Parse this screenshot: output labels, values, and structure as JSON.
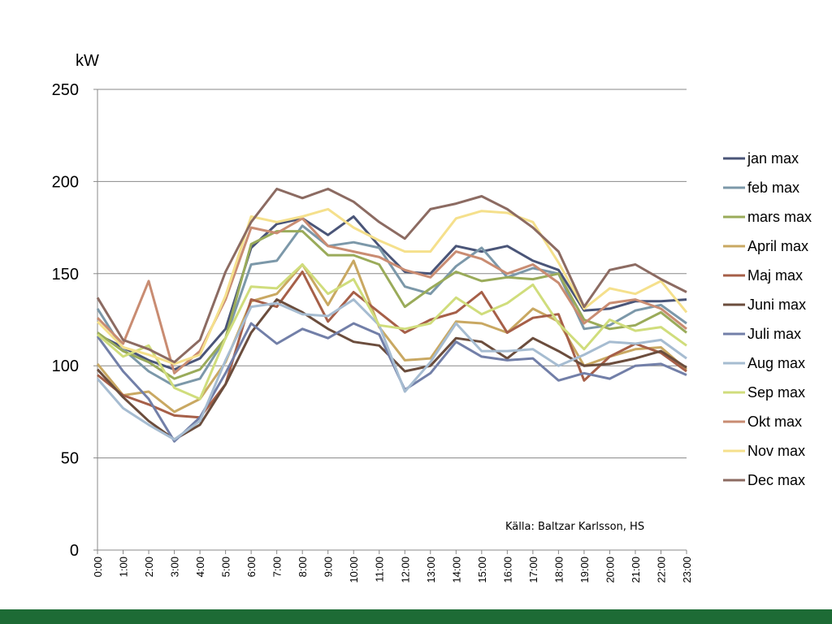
{
  "chart_data": {
    "type": "line",
    "ylabel": "kW",
    "ylim": [
      0,
      250
    ],
    "yticks": [
      0,
      50,
      100,
      150,
      200,
      250
    ],
    "grid": true,
    "legend_position": "right",
    "source": "Källa: Baltzar Karlsson, HS",
    "categories": [
      "0:00",
      "1:00",
      "2:00",
      "3:00",
      "4:00",
      "5:00",
      "6:00",
      "7:00",
      "8:00",
      "9:00",
      "10:00",
      "11:00",
      "12:00",
      "13:00",
      "14:00",
      "15:00",
      "16:00",
      "17:00",
      "18:00",
      "19:00",
      "20:00",
      "21:00",
      "22:00",
      "23:00"
    ],
    "series": [
      {
        "name": "jan max",
        "color": "#4a5578",
        "values": [
          117,
          110,
          103,
          98,
          104,
          120,
          164,
          177,
          180,
          171,
          181,
          165,
          151,
          150,
          165,
          162,
          165,
          157,
          152,
          130,
          131,
          135,
          135,
          136
        ]
      },
      {
        "name": "feb max",
        "color": "#7c98a9",
        "values": [
          131,
          109,
          97,
          89,
          93,
          115,
          155,
          157,
          176,
          165,
          167,
          164,
          143,
          139,
          154,
          164,
          148,
          153,
          150,
          120,
          122,
          130,
          133,
          123
        ]
      },
      {
        "name": "mars max",
        "color": "#9aab5a",
        "values": [
          118,
          108,
          102,
          93,
          98,
          115,
          166,
          173,
          173,
          160,
          160,
          155,
          132,
          142,
          151,
          146,
          148,
          147,
          150,
          125,
          120,
          122,
          129,
          118
        ]
      },
      {
        "name": "April max",
        "color": "#c9a862",
        "values": [
          101,
          84,
          86,
          75,
          82,
          102,
          135,
          139,
          155,
          133,
          157,
          121,
          103,
          104,
          124,
          123,
          118,
          131,
          124,
          100,
          105,
          109,
          110,
          98
        ]
      },
      {
        "name": "Maj max",
        "color": "#a65f48",
        "values": [
          95,
          84,
          79,
          73,
          72,
          90,
          136,
          132,
          151,
          124,
          140,
          129,
          118,
          125,
          129,
          140,
          118,
          126,
          128,
          92,
          105,
          112,
          107,
          97
        ]
      },
      {
        "name": "Juni max",
        "color": "#6b4d3d",
        "values": [
          98,
          83,
          70,
          60,
          68,
          90,
          118,
          136,
          129,
          120,
          113,
          111,
          97,
          100,
          115,
          113,
          104,
          115,
          108,
          100,
          101,
          104,
          108,
          99
        ]
      },
      {
        "name": "Juli max",
        "color": "#727fa8",
        "values": [
          116,
          97,
          82,
          59,
          72,
          96,
          123,
          112,
          120,
          115,
          123,
          117,
          87,
          96,
          113,
          105,
          103,
          104,
          92,
          96,
          93,
          100,
          101,
          95
        ]
      },
      {
        "name": "Aug max",
        "color": "#a6bcd1",
        "values": [
          93,
          77,
          68,
          60,
          70,
          103,
          132,
          134,
          128,
          127,
          136,
          122,
          86,
          102,
          123,
          108,
          108,
          109,
          100,
          106,
          113,
          112,
          114,
          104
        ]
      },
      {
        "name": "Sep max",
        "color": "#d0dd7c",
        "values": [
          117,
          105,
          111,
          88,
          82,
          115,
          143,
          142,
          155,
          139,
          147,
          122,
          120,
          123,
          137,
          128,
          134,
          144,
          123,
          109,
          125,
          119,
          121,
          111
        ]
      },
      {
        "name": "Okt max",
        "color": "#c98c72",
        "values": [
          126,
          112,
          146,
          96,
          108,
          136,
          175,
          172,
          180,
          165,
          162,
          159,
          152,
          148,
          162,
          158,
          150,
          155,
          145,
          123,
          134,
          136,
          131,
          120
        ]
      },
      {
        "name": "Nov max",
        "color": "#f5e08c",
        "values": [
          124,
          110,
          106,
          101,
          106,
          138,
          181,
          178,
          181,
          185,
          175,
          168,
          162,
          162,
          180,
          184,
          183,
          178,
          156,
          131,
          142,
          139,
          146,
          129
        ]
      },
      {
        "name": "Dec max",
        "color": "#8c6b62",
        "values": [
          137,
          114,
          109,
          102,
          114,
          151,
          178,
          196,
          191,
          196,
          189,
          178,
          169,
          185,
          188,
          192,
          185,
          175,
          162,
          132,
          152,
          155,
          147,
          140
        ]
      }
    ]
  }
}
